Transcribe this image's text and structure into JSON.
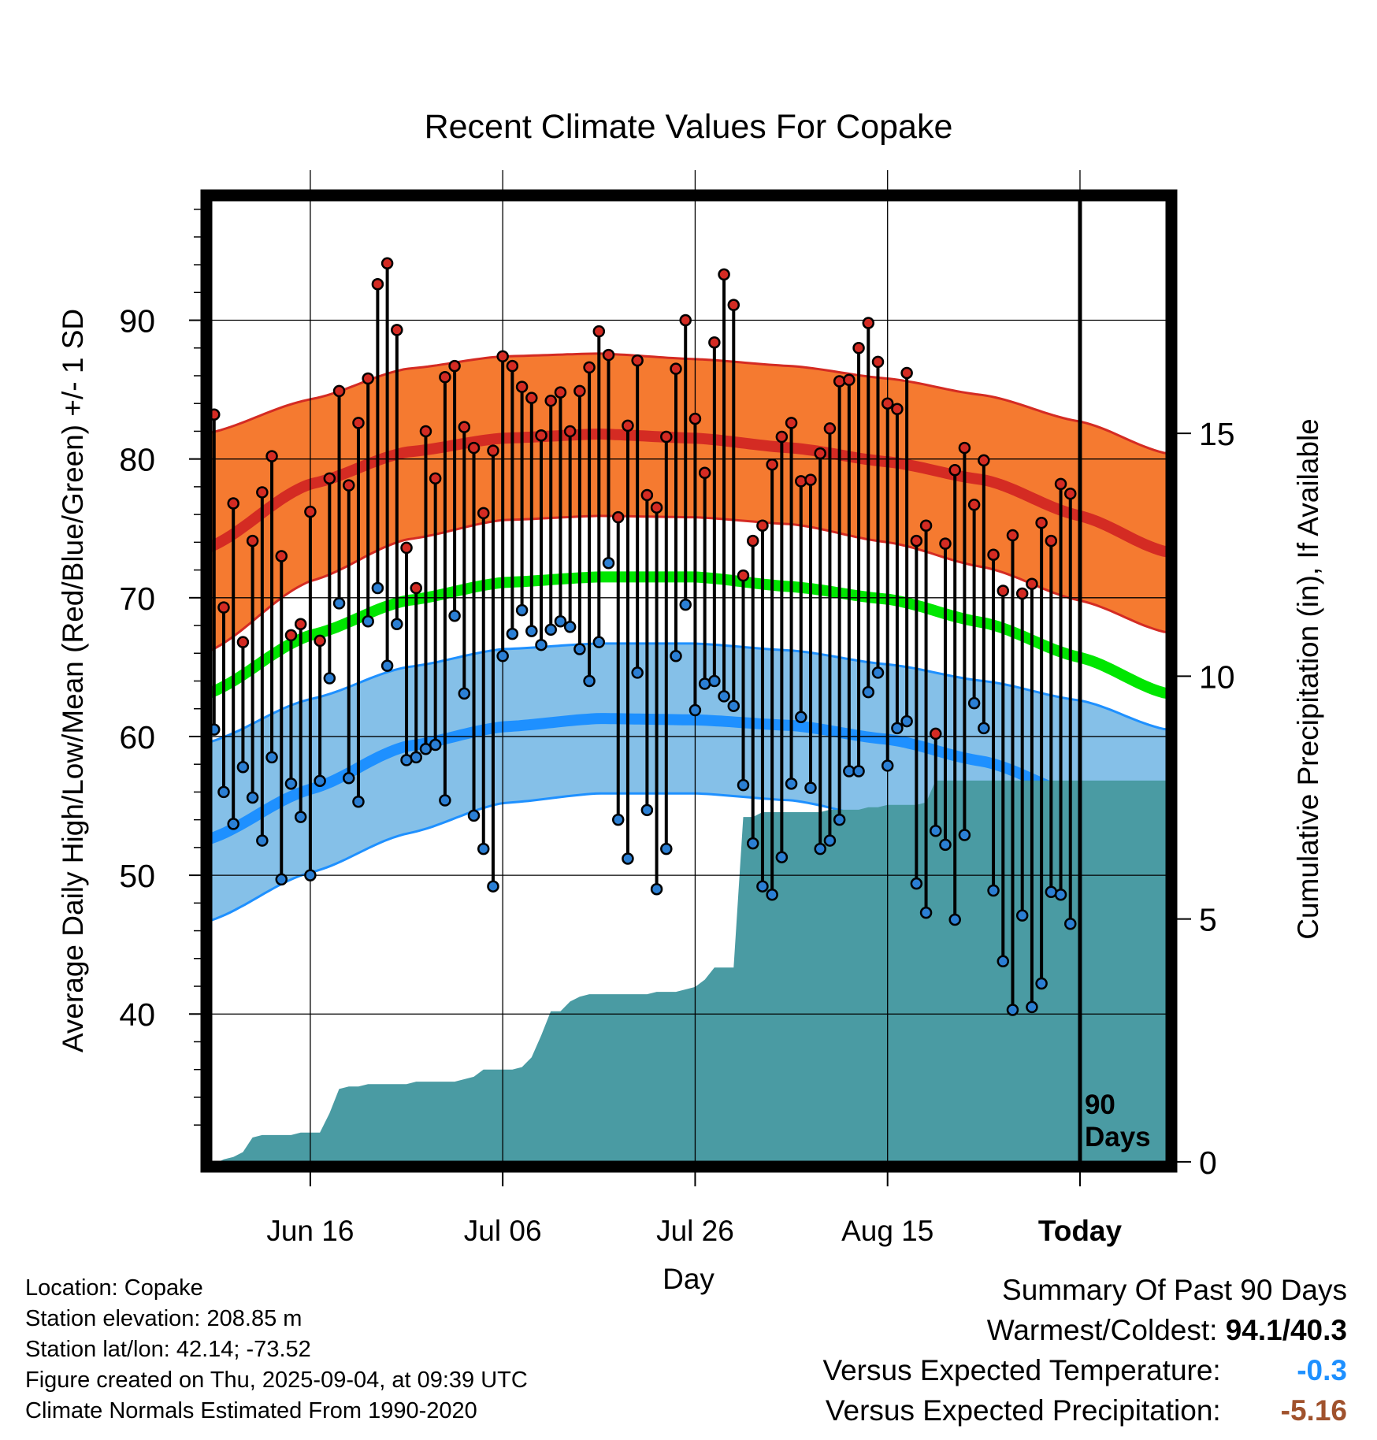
{
  "chart_data": {
    "type": "line",
    "title": "Recent Climate Values For Copake",
    "xlabel": "Day",
    "ylabel": "Average Daily High/Low/Mean (Red/Blue/Green) +/- 1 SD",
    "y2label": "Cumulative Precipitation (in), If Available",
    "ylim": [
      29,
      99
    ],
    "y2lim": [
      -0.1,
      19.9
    ],
    "xlim": [
      -0.8,
      99.5
    ],
    "yticks": [
      40,
      50,
      60,
      70,
      80,
      90
    ],
    "y2ticks": [
      0,
      5,
      10,
      15
    ],
    "xticks": [
      {
        "day": 10,
        "label": "Jun 16"
      },
      {
        "day": 30,
        "label": "Jul 06"
      },
      {
        "day": 50,
        "label": "Jul 26"
      },
      {
        "day": 70,
        "label": "Aug 15"
      },
      {
        "day": 90,
        "label": "Today"
      }
    ],
    "today_marker": {
      "day": 90,
      "label_line1": "90",
      "label_line2": "Days"
    },
    "grid": true,
    "colors": {
      "high_band": "#f57a30",
      "high_band_edge": "#d42b23",
      "high_mean": "#d42b23",
      "low_band": "#85c0e8",
      "low_band_edge": "#1e90ff",
      "low_mean": "#1e90ff",
      "mean": "#00e600",
      "precip": "#4a9ba3",
      "high_dot": "#d42b23",
      "low_dot": "#2b7fd4"
    },
    "normals": {
      "days": [
        -1,
        10,
        20,
        30,
        40,
        50,
        60,
        70,
        80,
        90,
        99
      ],
      "high_mean": [
        73.5,
        78.2,
        80.5,
        81.5,
        81.8,
        81.5,
        80.8,
        79.8,
        78.5,
        75.9,
        73.3
      ],
      "high_upper": [
        81.8,
        84.3,
        86.5,
        87.4,
        87.6,
        87.2,
        86.7,
        85.8,
        84.6,
        82.7,
        80.4
      ],
      "high_lower": [
        66.0,
        71.2,
        74.2,
        75.6,
        75.9,
        75.8,
        75.3,
        74.0,
        72.2,
        69.8,
        67.5
      ],
      "mean": [
        63.0,
        67.3,
        69.8,
        71.1,
        71.5,
        71.5,
        70.8,
        69.9,
        68.2,
        65.7,
        63.1
      ],
      "low_mean": [
        52.5,
        56.2,
        59.3,
        60.7,
        61.3,
        61.2,
        60.8,
        59.8,
        58.2,
        55.7,
        52.9
      ],
      "low_upper": [
        59.5,
        62.7,
        65.0,
        66.3,
        66.7,
        66.7,
        66.2,
        65.2,
        64.0,
        62.6,
        60.5
      ],
      "low_lower": [
        46.6,
        50.2,
        53.0,
        55.2,
        55.9,
        55.9,
        55.4,
        54.0,
        51.6,
        49.1,
        46.4
      ]
    },
    "series": [
      {
        "name": "High",
        "values": [
          83.2,
          69.3,
          76.8,
          66.8,
          74.1,
          77.6,
          80.2,
          73.0,
          67.3,
          68.1,
          76.2,
          66.9,
          78.6,
          84.9,
          78.1,
          82.6,
          85.8,
          92.6,
          94.1,
          89.3,
          73.6,
          70.7,
          82.0,
          78.6,
          85.9,
          86.7,
          82.3,
          80.8,
          76.1,
          80.6,
          87.4,
          86.7,
          85.2,
          84.4,
          81.7,
          84.2,
          84.8,
          82.0,
          84.9,
          86.6,
          89.2,
          87.5,
          75.8,
          82.4,
          87.1,
          77.4,
          76.5,
          81.6,
          86.5,
          90.0,
          82.9,
          79.0,
          88.4,
          93.3,
          91.1,
          71.6,
          74.1,
          75.2,
          79.6,
          81.6,
          82.6,
          78.4,
          78.5,
          80.4,
          82.2,
          85.6,
          85.7,
          88.0,
          89.8,
          87.0,
          84.0,
          83.6,
          86.2,
          74.1,
          75.2,
          60.2,
          73.9,
          79.2,
          80.8,
          76.7,
          79.9,
          73.1,
          70.5,
          74.5,
          70.3,
          71.0,
          75.4,
          74.1,
          78.2,
          77.5
        ]
      },
      {
        "name": "Low",
        "values": [
          60.5,
          56.0,
          53.7,
          57.8,
          55.6,
          52.5,
          58.5,
          49.7,
          56.6,
          54.2,
          50.0,
          56.8,
          64.2,
          69.6,
          57.0,
          55.3,
          68.3,
          70.7,
          65.1,
          68.1,
          58.3,
          58.5,
          59.1,
          59.4,
          55.4,
          68.7,
          63.1,
          54.3,
          51.9,
          49.2,
          65.8,
          67.4,
          69.1,
          67.6,
          66.6,
          67.7,
          68.3,
          67.9,
          66.3,
          64.0,
          66.8,
          72.5,
          54.0,
          51.2,
          64.6,
          54.7,
          49.0,
          51.9,
          65.8,
          69.5,
          61.9,
          63.8,
          64.0,
          62.9,
          62.2,
          56.5,
          52.3,
          49.2,
          48.6,
          51.3,
          56.6,
          61.4,
          56.3,
          51.9,
          52.5,
          54.0,
          57.5,
          57.5,
          63.2,
          64.6,
          57.9,
          60.6,
          61.1,
          49.4,
          47.3,
          53.2,
          52.2,
          46.8,
          52.9,
          62.4,
          60.6,
          48.9,
          43.8,
          40.3,
          47.1,
          40.5,
          42.2,
          48.8,
          48.6,
          46.5
        ]
      },
      {
        "name": "Cumulative Precipitation",
        "x": [
          -1,
          0.5,
          1,
          2,
          3,
          4,
          5,
          6,
          7,
          8,
          9,
          10,
          11,
          12,
          13,
          14,
          15,
          16,
          17,
          18,
          19,
          20,
          21,
          22,
          23,
          24,
          25,
          26,
          27,
          28,
          29,
          30,
          31,
          32,
          33,
          34,
          35,
          36,
          37,
          38,
          39,
          40,
          41,
          42,
          43,
          44,
          45,
          46,
          47,
          48,
          49,
          50,
          51,
          52,
          53,
          54,
          55,
          56,
          57,
          58,
          59,
          60,
          61,
          62,
          63,
          64,
          65,
          66,
          67,
          68,
          69,
          70,
          71,
          72,
          73,
          74,
          75,
          76,
          77,
          78,
          79,
          80,
          81,
          82,
          83,
          84,
          85,
          86,
          87,
          88,
          89,
          90,
          91,
          92,
          93,
          94,
          95,
          96,
          97,
          98,
          99
        ],
        "values": [
          0.0,
          0.0,
          0.05,
          0.1,
          0.2,
          0.5,
          0.55,
          0.55,
          0.55,
          0.55,
          0.6,
          0.6,
          0.6,
          1.0,
          1.5,
          1.55,
          1.55,
          1.6,
          1.6,
          1.6,
          1.6,
          1.6,
          1.65,
          1.65,
          1.65,
          1.65,
          1.65,
          1.7,
          1.75,
          1.9,
          1.9,
          1.9,
          1.9,
          1.95,
          2.15,
          2.6,
          3.1,
          3.1,
          3.3,
          3.4,
          3.45,
          3.45,
          3.45,
          3.45,
          3.45,
          3.45,
          3.45,
          3.5,
          3.5,
          3.5,
          3.55,
          3.6,
          3.75,
          4.0,
          4.0,
          4.0,
          7.1,
          7.1,
          7.2,
          7.2,
          7.2,
          7.2,
          7.2,
          7.2,
          7.2,
          7.25,
          7.25,
          7.25,
          7.25,
          7.3,
          7.3,
          7.35,
          7.35,
          7.35,
          7.35,
          7.4,
          7.85,
          7.85,
          7.85,
          7.85,
          7.85,
          7.85,
          7.85,
          7.85,
          7.85,
          7.85,
          7.85,
          7.85,
          7.85,
          7.85,
          7.85,
          7.85,
          7.85,
          7.85,
          7.85,
          7.85,
          7.85,
          7.85,
          7.85,
          7.85,
          7.85
        ]
      }
    ]
  },
  "info": {
    "location": "Location: Copake",
    "elevation": "Station elevation: 208.85 m",
    "latlon": "Station lat/lon: 42.14; -73.52",
    "created": "Figure created on Thu, 2025-09-04, at 09:39 UTC",
    "normals": "Climate Normals Estimated From 1990-2020"
  },
  "summary": {
    "title": "Summary Of Past 90 Days",
    "warmest_label": "Warmest/Coldest:",
    "warmest_value": "94.1/40.3",
    "temp_label": "Versus Expected Temperature:",
    "temp_value": "-0.3",
    "temp_color": "#1e90ff",
    "precip_label": "Versus Expected Precipitation:",
    "precip_value": "-5.16",
    "precip_color": "#a0522d"
  }
}
